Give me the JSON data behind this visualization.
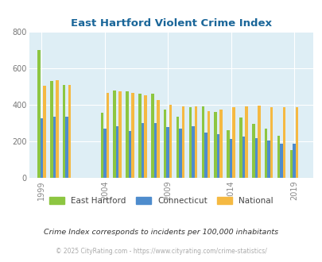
{
  "title": "East Hartford Violent Crime Index",
  "subtitle": "Crime Index corresponds to incidents per 100,000 inhabitants",
  "footer": "© 2025 CityRating.com - https://www.cityrating.com/crime-statistics/",
  "years": [
    1999,
    2000,
    2001,
    2004,
    2005,
    2006,
    2007,
    2008,
    2009,
    2010,
    2011,
    2012,
    2013,
    2014,
    2015,
    2016,
    2017,
    2018,
    2019
  ],
  "east_hartford": [
    700,
    530,
    510,
    355,
    480,
    475,
    460,
    460,
    375,
    335,
    385,
    390,
    360,
    260,
    330,
    295,
    270,
    230,
    155
  ],
  "connecticut": [
    325,
    335,
    335,
    270,
    285,
    255,
    300,
    300,
    280,
    270,
    285,
    250,
    240,
    215,
    225,
    220,
    205,
    190,
    190
  ],
  "national": [
    505,
    535,
    510,
    465,
    475,
    465,
    450,
    425,
    400,
    390,
    390,
    365,
    375,
    385,
    390,
    395,
    385,
    385,
    385
  ],
  "color_eh": "#8dc641",
  "color_ct": "#4e8ccd",
  "color_na": "#f5b942",
  "bg_color": "#deeef5",
  "title_color": "#1a6699",
  "subtitle_color": "#333333",
  "footer_color": "#aaaaaa",
  "ylim": [
    0,
    800
  ],
  "yticks": [
    0,
    200,
    400,
    600,
    800
  ],
  "xtick_years": [
    1999,
    2004,
    2009,
    2014,
    2019
  ],
  "x_tick_labels": [
    "1999",
    "2004",
    "2009",
    "2014",
    "2019"
  ],
  "bar_width": 0.22,
  "xlim_left": 1998.0,
  "xlim_right": 2020.5
}
